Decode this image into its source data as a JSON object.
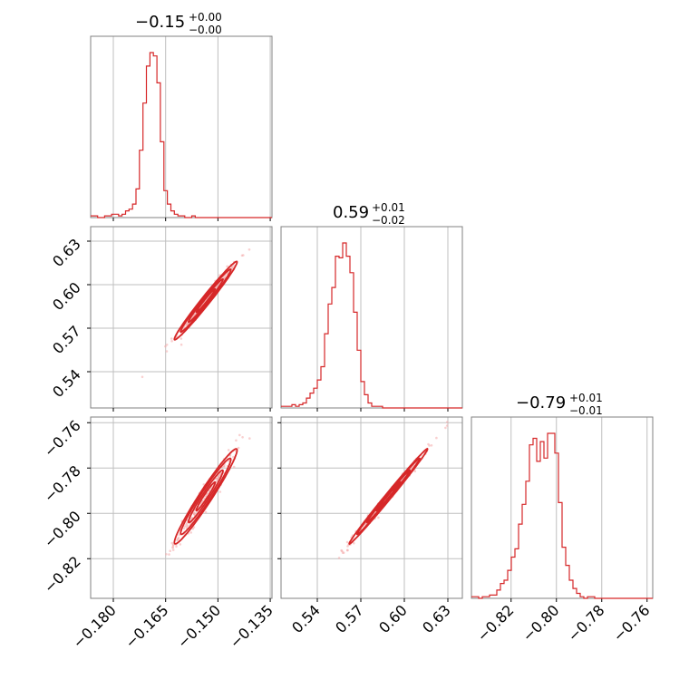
{
  "chart_data": {
    "type": "corner",
    "color": "#d62728",
    "parameters": [
      {
        "title": {
          "value": "−0.15",
          "plus": "+0.00",
          "minus": "−0.00"
        },
        "ticks": [
          -0.18,
          -0.165,
          -0.15,
          -0.135
        ],
        "tick_labels": [
          "−0.180",
          "−0.165",
          "−0.150",
          "−0.135"
        ],
        "range": [
          -0.1865,
          -0.1345
        ],
        "hist": {
          "edges_start": -0.1865,
          "bin_width": 0.001,
          "counts": [
            1,
            1,
            0,
            0,
            1,
            1,
            2,
            2,
            1,
            2,
            4,
            5,
            8,
            17,
            40,
            68,
            90,
            98,
            96,
            80,
            45,
            16,
            8,
            4,
            2,
            1,
            1,
            0,
            0,
            1,
            0,
            0,
            0,
            0,
            0,
            0,
            0,
            0,
            0,
            0,
            0,
            0,
            0,
            0,
            0,
            0,
            0,
            0,
            0,
            0,
            0,
            0
          ]
        }
      },
      {
        "title": {
          "value": "0.59",
          "plus": "+0.01",
          "minus": "−0.02"
        },
        "ticks": [
          0.54,
          0.57,
          0.6,
          0.63
        ],
        "tick_labels": [
          "0.54",
          "0.57",
          "0.60",
          "0.63"
        ],
        "range": [
          0.515,
          0.64
        ],
        "hist": {
          "edges_start": 0.515,
          "bin_width": 0.0025,
          "counts": [
            1,
            1,
            1,
            2,
            1,
            2,
            3,
            6,
            9,
            12,
            17,
            25,
            45,
            63,
            73,
            92,
            91,
            100,
            92,
            82,
            58,
            35,
            16,
            8,
            3,
            1,
            1,
            1,
            0,
            0,
            0,
            0,
            0,
            0,
            0,
            0,
            0,
            0,
            0,
            0,
            0,
            0,
            0,
            0,
            0,
            0,
            0,
            0,
            0,
            0
          ]
        }
      },
      {
        "title": {
          "value": "−0.79",
          "plus": "+0.01",
          "minus": "−0.01"
        },
        "ticks": [
          -0.82,
          -0.8,
          -0.78,
          -0.76
        ],
        "tick_labels": [
          "−0.82",
          "−0.80",
          "−0.78",
          "−0.76"
        ],
        "range": [
          -0.8375,
          -0.7575
        ],
        "hist": {
          "edges_start": -0.8375,
          "bin_width": 0.0016,
          "counts": [
            1,
            1,
            0,
            1,
            1,
            2,
            2,
            5,
            9,
            11,
            17,
            25,
            30,
            45,
            57,
            71,
            93,
            97,
            83,
            95,
            85,
            100,
            100,
            88,
            58,
            31,
            20,
            11,
            6,
            3,
            1,
            0,
            1,
            1,
            0,
            0,
            0,
            0,
            0,
            0,
            0,
            0,
            0,
            0,
            0,
            0,
            0,
            0,
            0,
            0
          ]
        }
      }
    ],
    "correlations": {
      "p0_p1": 0.985,
      "p0_p2": 0.97,
      "p1_p2": 0.995
    },
    "centers": [
      -0.1535,
      0.589,
      -0.7925
    ],
    "sigmas": [
      0.0045,
      0.0135,
      0.0105
    ],
    "grid": true
  }
}
